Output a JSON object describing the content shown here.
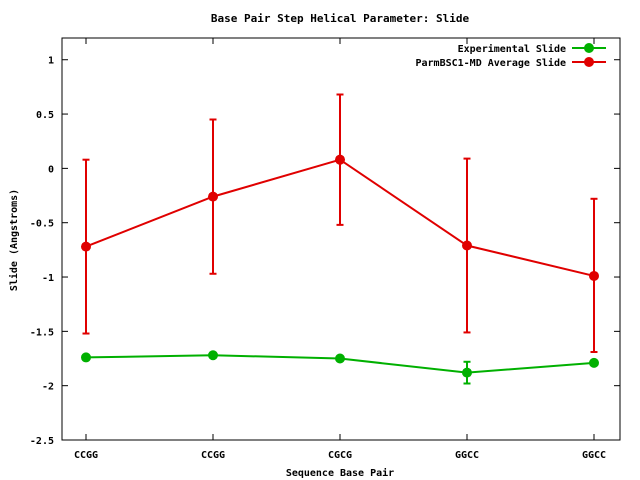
{
  "chart_data": {
    "type": "line",
    "title": "Base Pair Step Helical Parameter: Slide",
    "xlabel": "Sequence Base Pair",
    "ylabel": "Slide (Angstroms)",
    "categories": [
      "CCGG",
      "CCGG",
      "CGCG",
      "GGCC",
      "GGCC"
    ],
    "ylim": [
      -2.5,
      1.2
    ],
    "yticks": [
      1,
      0.5,
      0,
      -0.5,
      -1,
      -1.5,
      -2,
      -2.5
    ],
    "ytick_labels": [
      "1",
      "0.5",
      "0",
      "-0.5",
      "-1",
      "-1.5",
      "-2",
      "-2.5"
    ],
    "grid": false,
    "legend_position": "top-right",
    "series": [
      {
        "name": "Experimental Slide",
        "color": "#00b000",
        "values": [
          -1.74,
          -1.72,
          -1.75,
          -1.88,
          -1.79
        ],
        "error_low": [
          null,
          null,
          null,
          -1.98,
          null
        ],
        "error_high": [
          null,
          null,
          null,
          -1.78,
          null
        ]
      },
      {
        "name": "ParmBSC1-MD Average Slide",
        "color": "#e00000",
        "values": [
          -0.72,
          -0.26,
          0.08,
          -0.71,
          -0.99
        ],
        "error_low": [
          -1.52,
          -0.97,
          -0.52,
          -1.51,
          -1.69
        ],
        "error_high": [
          0.08,
          0.45,
          0.68,
          0.09,
          -0.28
        ]
      }
    ]
  }
}
